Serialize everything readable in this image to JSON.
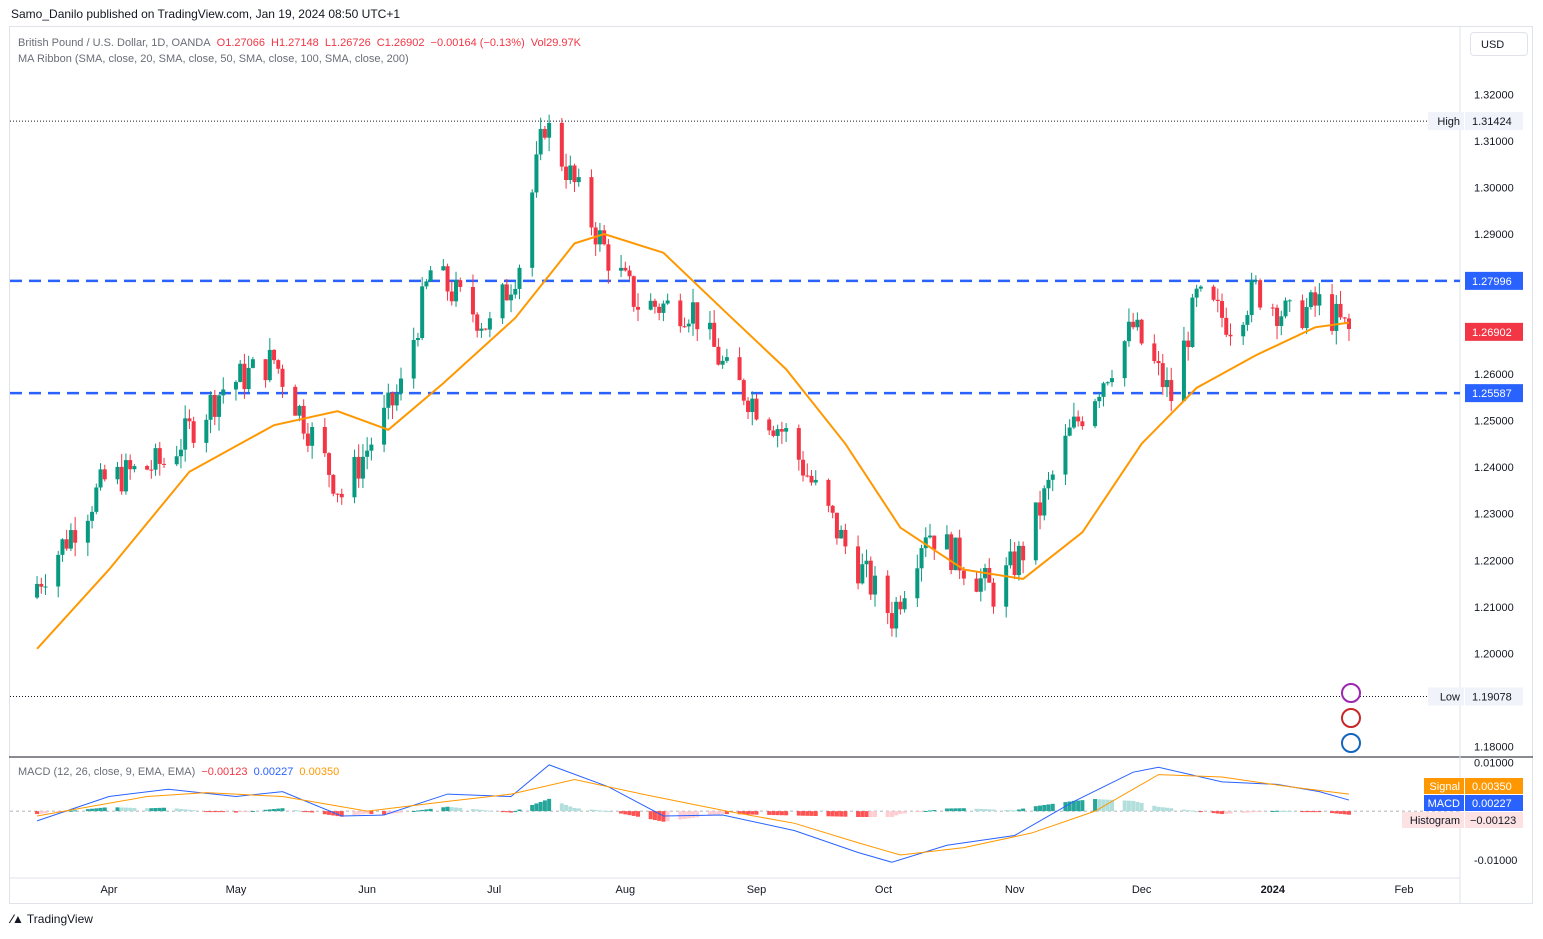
{
  "header": {
    "published_by": "Samo_Danilo published on TradingView.com, Jan 19, 2024 08:50 UTC+1"
  },
  "legend": {
    "symbol": "British Pound / U.S. Dollar, 1D, OANDA",
    "open": "O1.27066",
    "high": "H1.27148",
    "low": "L1.26726",
    "close": "C1.26902",
    "change": "−0.00164 (−0.13%)",
    "volume": "Vol29.97K",
    "ma_ribbon": "MA Ribbon (SMA, close, 20, SMA, close, 50, SMA, close, 100, SMA, close, 200)",
    "macd_title": "MACD (12, 26, close, 9, EMA, EMA)",
    "macd_hist": "−0.00123",
    "macd_line": "0.00227",
    "macd_signal": "0.00350"
  },
  "currency_button": "USD",
  "footer_brand": "TradingView",
  "colors": {
    "up": "#089981",
    "down": "#f23645",
    "level_line": "#2962ff",
    "ma20": "#ff9800",
    "macd": "#2962ff",
    "signal": "#ff9800"
  },
  "tags": {
    "high_label": "High",
    "high_value": "1.31424",
    "low_label": "Low",
    "low_value": "1.19078",
    "resistance": "1.27996",
    "last_price": "1.26902",
    "support": "1.25587",
    "signal_label": "Signal",
    "signal_value": "0.00350",
    "macd_label": "MACD",
    "macd_value": "0.00227",
    "hist_label": "Histogram",
    "hist_value": "−0.00123"
  },
  "chart_data": {
    "type": "candlestick",
    "y_axis_labels": [
      "1.32000",
      "1.31000",
      "1.30000",
      "1.29000",
      "1.28000",
      "1.27000",
      "1.26000",
      "1.25000",
      "1.24000",
      "1.23000",
      "1.22000",
      "1.21000",
      "1.20000",
      "1.19000",
      "1.18000"
    ],
    "y_range": [
      1.178,
      1.3265
    ],
    "x_axis_labels": [
      "Apr",
      "May",
      "Jun",
      "Jul",
      "Aug",
      "Sep",
      "Oct",
      "Nov",
      "Dec",
      "2024",
      "Feb"
    ],
    "x_label_dates": [
      "2023-04-01",
      "2023-05-01",
      "2023-06-01",
      "2023-07-01",
      "2023-08-01",
      "2023-09-01",
      "2023-10-01",
      "2023-11-01",
      "2023-12-01",
      "2024-01-01",
      "2024-02-01"
    ],
    "horizontal_levels": [
      1.27996,
      1.25587
    ],
    "high": 1.31424,
    "low": 1.19078,
    "last_close": 1.26902,
    "macd_axis_labels": [
      "0.01000",
      "-0.01000"
    ],
    "macd_range": [
      -0.0125,
      0.0105
    ],
    "close_path": [
      [
        "2023-03-15",
        1.215
      ],
      [
        "2023-03-31",
        1.237
      ],
      [
        "2023-04-14",
        1.241
      ],
      [
        "2023-04-28",
        1.257
      ],
      [
        "2023-05-10",
        1.263
      ],
      [
        "2023-05-26",
        1.234
      ],
      [
        "2023-06-09",
        1.257
      ],
      [
        "2023-06-16",
        1.282
      ],
      [
        "2023-06-30",
        1.27
      ],
      [
        "2023-07-07",
        1.284
      ],
      [
        "2023-07-13",
        1.314
      ],
      [
        "2023-07-28",
        1.285
      ],
      [
        "2023-08-04",
        1.275
      ],
      [
        "2023-08-17",
        1.274
      ],
      [
        "2023-08-25",
        1.26
      ],
      [
        "2023-09-08",
        1.247
      ],
      [
        "2023-09-22",
        1.223
      ],
      [
        "2023-10-03",
        1.208
      ],
      [
        "2023-10-11",
        1.227
      ],
      [
        "2023-10-27",
        1.213
      ],
      [
        "2023-11-03",
        1.222
      ],
      [
        "2023-11-14",
        1.247
      ],
      [
        "2023-11-29",
        1.27
      ],
      [
        "2023-12-08",
        1.255
      ],
      [
        "2023-12-14",
        1.276
      ],
      [
        "2023-12-22",
        1.271
      ],
      [
        "2023-12-28",
        1.278
      ],
      [
        "2024-01-05",
        1.272
      ],
      [
        "2024-01-12",
        1.275
      ],
      [
        "2024-01-19",
        1.269
      ]
    ],
    "ma20_path": [
      [
        "2023-03-15",
        1.201
      ],
      [
        "2023-04-01",
        1.218
      ],
      [
        "2023-04-20",
        1.239
      ],
      [
        "2023-05-10",
        1.249
      ],
      [
        "2023-05-25",
        1.252
      ],
      [
        "2023-06-06",
        1.248
      ],
      [
        "2023-06-19",
        1.258
      ],
      [
        "2023-07-06",
        1.272
      ],
      [
        "2023-07-20",
        1.288
      ],
      [
        "2023-07-27",
        1.29
      ],
      [
        "2023-08-10",
        1.286
      ],
      [
        "2023-08-25",
        1.273
      ],
      [
        "2023-09-08",
        1.261
      ],
      [
        "2023-09-22",
        1.245
      ],
      [
        "2023-10-05",
        1.227
      ],
      [
        "2023-10-20",
        1.218
      ],
      [
        "2023-11-03",
        1.216
      ],
      [
        "2023-11-17",
        1.226
      ],
      [
        "2023-12-01",
        1.245
      ],
      [
        "2023-12-14",
        1.257
      ],
      [
        "2023-12-28",
        1.264
      ],
      [
        "2024-01-11",
        1.27
      ],
      [
        "2024-01-19",
        1.271
      ]
    ],
    "macd_path": [
      [
        "2023-03-15",
        -0.002
      ],
      [
        "2023-04-01",
        0.003
      ],
      [
        "2023-04-15",
        0.0045
      ],
      [
        "2023-05-01",
        0.003
      ],
      [
        "2023-05-12",
        0.004
      ],
      [
        "2023-05-26",
        -0.001
      ],
      [
        "2023-06-05",
        -0.0008
      ],
      [
        "2023-06-20",
        0.0035
      ],
      [
        "2023-07-05",
        0.003
      ],
      [
        "2023-07-14",
        0.0095
      ],
      [
        "2023-07-28",
        0.005
      ],
      [
        "2023-08-10",
        -0.001
      ],
      [
        "2023-08-24",
        -0.0008
      ],
      [
        "2023-09-10",
        -0.004
      ],
      [
        "2023-09-25",
        -0.0085
      ],
      [
        "2023-10-03",
        -0.0105
      ],
      [
        "2023-10-16",
        -0.007
      ],
      [
        "2023-11-01",
        -0.005
      ],
      [
        "2023-11-15",
        0.002
      ],
      [
        "2023-11-29",
        0.008
      ],
      [
        "2023-12-05",
        0.009
      ],
      [
        "2023-12-20",
        0.006
      ],
      [
        "2024-01-02",
        0.0055
      ],
      [
        "2024-01-12",
        0.004
      ],
      [
        "2024-01-19",
        0.00227
      ]
    ],
    "signal_path": [
      [
        "2023-03-15",
        -0.001
      ],
      [
        "2023-04-10",
        0.003
      ],
      [
        "2023-04-24",
        0.0038
      ],
      [
        "2023-05-12",
        0.003
      ],
      [
        "2023-06-01",
        0.0
      ],
      [
        "2023-06-20",
        0.002
      ],
      [
        "2023-07-05",
        0.0035
      ],
      [
        "2023-07-20",
        0.0065
      ],
      [
        "2023-08-05",
        0.0035
      ],
      [
        "2023-08-25",
        0.0
      ],
      [
        "2023-09-10",
        -0.0025
      ],
      [
        "2023-09-25",
        -0.0065
      ],
      [
        "2023-10-05",
        -0.009
      ],
      [
        "2023-10-20",
        -0.0075
      ],
      [
        "2023-11-05",
        -0.0045
      ],
      [
        "2023-11-20",
        0.0
      ],
      [
        "2023-12-05",
        0.0075
      ],
      [
        "2023-12-20",
        0.007
      ],
      [
        "2024-01-05",
        0.005
      ],
      [
        "2024-01-19",
        0.0035
      ]
    ]
  }
}
